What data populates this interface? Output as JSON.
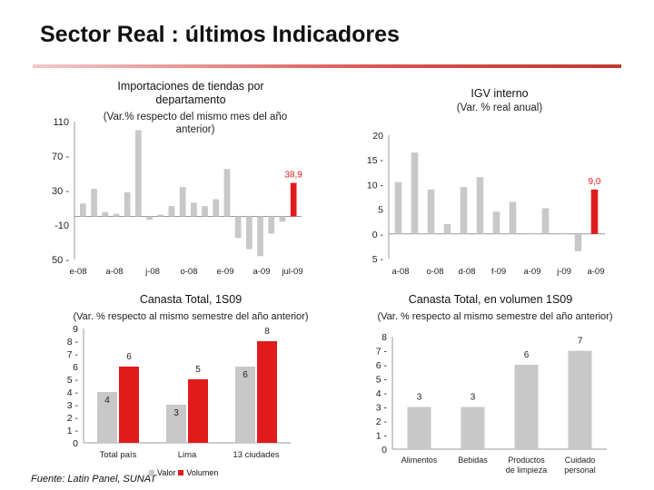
{
  "slide": {
    "title": "Sector Real : últimos Indicadores",
    "source": "Fuente: Latin Panel, SUNAT",
    "legend": {
      "valor": "Valor",
      "volumen": "Volumen"
    }
  },
  "colors": {
    "gray": "#c8c8c8",
    "red": "#e11b1b",
    "accent": "#d32f2f"
  },
  "chart_data": [
    {
      "id": "importaciones",
      "type": "bar",
      "title": "Importaciones de tiendas por departamento",
      "subtitle": "(Var.% respecto del mismo mes del año anterior)",
      "ylim": [
        -50,
        110
      ],
      "yticks": [
        110,
        70,
        30,
        -10,
        -50
      ],
      "ytick_labels": [
        "110",
        "70 -",
        "30 -",
        "-10",
        "50 -"
      ],
      "xtick_labels": [
        "e-08",
        "a-08",
        "j-08",
        "o-08",
        "e-09",
        "a-09",
        "jul-09"
      ],
      "values": [
        15,
        32,
        5,
        3,
        28,
        100,
        -4,
        2,
        12,
        34,
        16,
        12,
        20,
        55,
        -25,
        -38,
        -46,
        -20,
        -6,
        38.9
      ],
      "highlight_last": true,
      "annotation": "38,9"
    },
    {
      "id": "igv",
      "type": "bar",
      "title": "IGV interno",
      "subtitle": "(Var. % real anual)",
      "ylim": [
        -5,
        20
      ],
      "yticks": [
        20,
        15,
        10,
        5,
        0,
        -5
      ],
      "ytick_labels": [
        "20",
        "15 -",
        "10 -",
        "5",
        "0 -",
        "5 -"
      ],
      "xtick_labels": [
        "a-08",
        "o-08",
        "d-08",
        "f-09",
        "a-09",
        "j-09",
        "a-09"
      ],
      "values": [
        10.5,
        16.5,
        9,
        2,
        9.5,
        11.5,
        4.5,
        6.5,
        0.2,
        5.2,
        0.2,
        -3.5,
        9
      ],
      "highlight_last": true,
      "annotation": "9,0"
    },
    {
      "id": "canasta_total",
      "type": "bar",
      "title": "Canasta Total, 1S09",
      "subtitle": "(Var. % respecto al mismo semestre del año anterior)",
      "ylim": [
        0,
        9
      ],
      "yticks": [
        9,
        8,
        7,
        6,
        5,
        4,
        3,
        2,
        1,
        0
      ],
      "ytick_labels": [
        "9",
        "8 -",
        "7 -",
        "6",
        "5 -",
        "4 -",
        "3 -",
        "2 -",
        "1 -",
        "0"
      ],
      "categories": [
        "Total país",
        "Lima",
        "13 ciudades"
      ],
      "series": [
        {
          "name": "Valor",
          "values": [
            4,
            3,
            6
          ],
          "labels": [
            "4",
            "3",
            "6"
          ]
        },
        {
          "name": "Volumen",
          "values": [
            6,
            5,
            8
          ],
          "labels": [
            "6",
            "5",
            "8"
          ]
        }
      ]
    },
    {
      "id": "canasta_volumen",
      "type": "bar",
      "title": "Canasta Total, en volumen 1S09",
      "subtitle": "(Var. % respecto al mismo semestre del año anterior)",
      "ylim": [
        0,
        8
      ],
      "yticks": [
        8,
        7,
        6,
        5,
        4,
        3,
        2,
        1,
        0
      ],
      "ytick_labels": [
        "8",
        "7 -",
        "6 -",
        "5 -",
        "4 -",
        "3 -",
        "2 -",
        "1 -",
        "0"
      ],
      "categories": [
        "Alimentos",
        "Bebidas",
        "Productos de limpieza",
        "Cuidado personal"
      ],
      "values": [
        3,
        3,
        6,
        7
      ],
      "labels": [
        "3",
        "3",
        "6",
        "7"
      ]
    }
  ]
}
